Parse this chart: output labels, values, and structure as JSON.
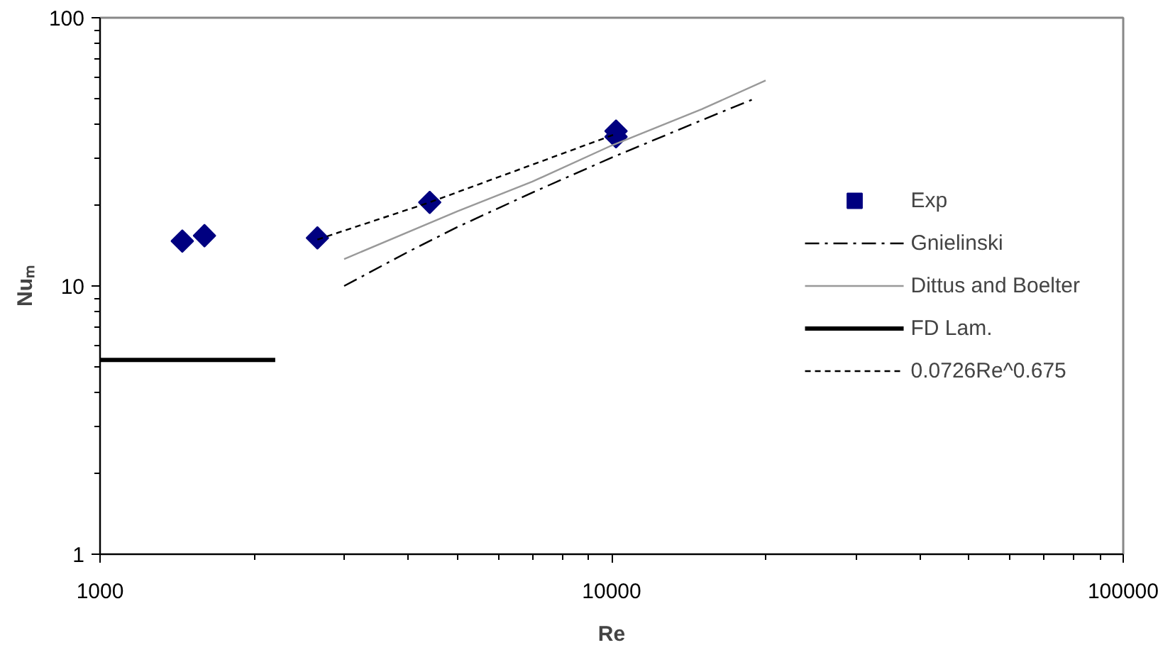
{
  "chart_data": {
    "type": "scatter",
    "xlabel": "Re",
    "ylabel": "Nuₘ",
    "log": "xy",
    "xlim": [
      1000,
      100000
    ],
    "ylim": [
      1,
      100
    ],
    "xticks": [
      1000,
      10000,
      100000
    ],
    "yticks": [
      1,
      10,
      100
    ],
    "grid": false,
    "legend": "right",
    "series": [
      {
        "name": "Exp",
        "marker": "diamond",
        "color": "#000080",
        "x": [
          1448,
          1600,
          2660,
          4410,
          10200,
          10200
        ],
        "values": [
          14.7,
          15.4,
          15.1,
          20.5,
          37.8,
          36.0
        ]
      },
      {
        "name": "Gnielinski",
        "type": "line",
        "line_style": "dashed",
        "color": "#000000",
        "x": [
          3000,
          4000,
          5000,
          7000,
          10000,
          15000,
          19000
        ],
        "values": [
          10.0,
          13.4,
          16.6,
          22.3,
          30.1,
          41.5,
          49.9
        ]
      },
      {
        "name": "Dittus and Boelter",
        "type": "line",
        "line_style": "solid",
        "color": "#999999",
        "x": [
          3000,
          5000,
          7000,
          10000,
          15000,
          20000
        ],
        "values": [
          12.6,
          19.0,
          24.5,
          33.4,
          45.6,
          58.4
        ]
      },
      {
        "name": "FD Lam.",
        "type": "line",
        "line_style": "solid",
        "color": "#000000",
        "x": [
          1000,
          2200
        ],
        "values": [
          5.3,
          5.3
        ]
      },
      {
        "name": "0.0726Re^0.675",
        "type": "line",
        "line_style": "dotted",
        "color": "#000000",
        "x": [
          2660,
          4410,
          10200
        ],
        "values": [
          14.9,
          20.5,
          36.9
        ]
      }
    ]
  }
}
